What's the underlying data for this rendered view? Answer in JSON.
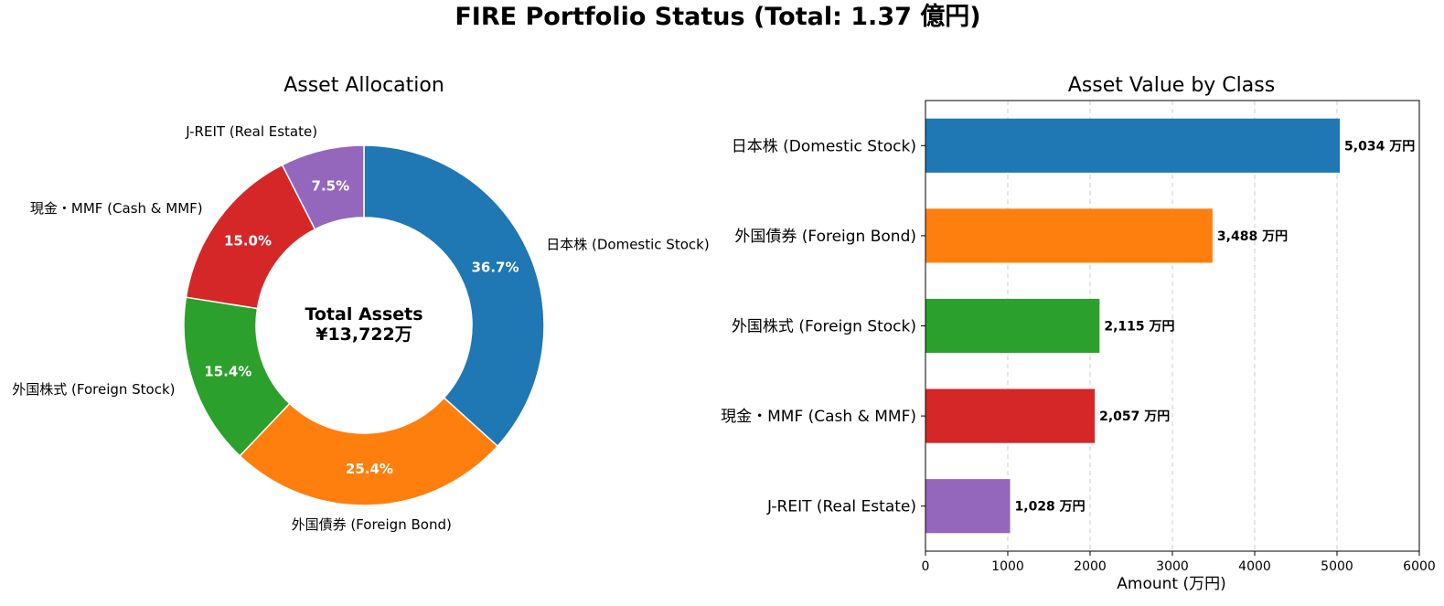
{
  "figure_title": "FIRE Portfolio Status (Total: 1.37 億円)",
  "chart_data": [
    {
      "type": "pie",
      "donut": true,
      "title": "Asset Allocation",
      "center_label": [
        "Total Assets",
        "¥13,722万"
      ],
      "slices": [
        {
          "label": "日本株 (Domestic Stock)",
          "value": 36.7,
          "pct_label": "36.7%",
          "color": "#1f77b4"
        },
        {
          "label": "外国債券 (Foreign Bond)",
          "value": 25.4,
          "pct_label": "25.4%",
          "color": "#ff7f0e"
        },
        {
          "label": "外国株式 (Foreign Stock)",
          "value": 15.4,
          "pct_label": "15.4%",
          "color": "#2ca02c"
        },
        {
          "label": "現金・MMF (Cash & MMF)",
          "value": 15.0,
          "pct_label": "15.0%",
          "color": "#d62728"
        },
        {
          "label": "J-REIT (Real Estate)",
          "value": 7.5,
          "pct_label": "7.5%",
          "color": "#9467bd"
        }
      ]
    },
    {
      "type": "bar",
      "orientation": "horizontal",
      "title": "Asset Value by Class",
      "categories": [
        "日本株 (Domestic Stock)",
        "外国債券 (Foreign Bond)",
        "外国株式 (Foreign Stock)",
        "現金・MMF (Cash & MMF)",
        "J-REIT (Real Estate)"
      ],
      "values": [
        5034,
        3488,
        2115,
        2057,
        1028
      ],
      "value_labels": [
        "5,034 万円",
        "3,488 万円",
        "2,115 万円",
        "2,057 万円",
        "1,028 万円"
      ],
      "colors": [
        "#1f77b4",
        "#ff7f0e",
        "#2ca02c",
        "#d62728",
        "#9467bd"
      ],
      "xlabel": "Amount (万円)",
      "ylabel": "",
      "xlim": [
        0,
        6000
      ],
      "xticks": [
        0,
        1000,
        2000,
        3000,
        4000,
        5000,
        6000
      ],
      "grid": "x-dashed"
    }
  ]
}
